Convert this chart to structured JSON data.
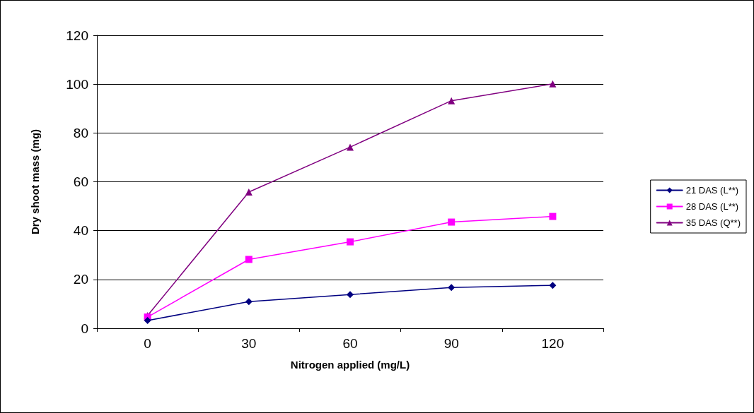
{
  "chart_data": {
    "type": "line",
    "xlabel": "Nitrogen applied (mg/L)",
    "ylabel": "Dry shoot mass (mg)",
    "categories": [
      "0",
      "30",
      "60",
      "90",
      "120"
    ],
    "series": [
      {
        "name": "21 DAS (L**)",
        "color": "#000080",
        "marker": "diamond",
        "values": [
          3.2,
          10.9,
          13.8,
          16.7,
          17.6
        ]
      },
      {
        "name": "28 DAS (L**)",
        "color": "#ff00ff",
        "marker": "square",
        "values": [
          4.6,
          28.2,
          35.4,
          43.5,
          45.8
        ]
      },
      {
        "name": "35 DAS (Q**)",
        "color": "#800080",
        "marker": "triangle",
        "values": [
          5.2,
          55.8,
          74.2,
          93.2,
          100.1
        ]
      }
    ],
    "ylim": [
      0,
      120
    ],
    "yticks": [
      0,
      20,
      40,
      60,
      80,
      100,
      120
    ],
    "grid": "y",
    "legend": "right",
    "line_style": "solid"
  }
}
